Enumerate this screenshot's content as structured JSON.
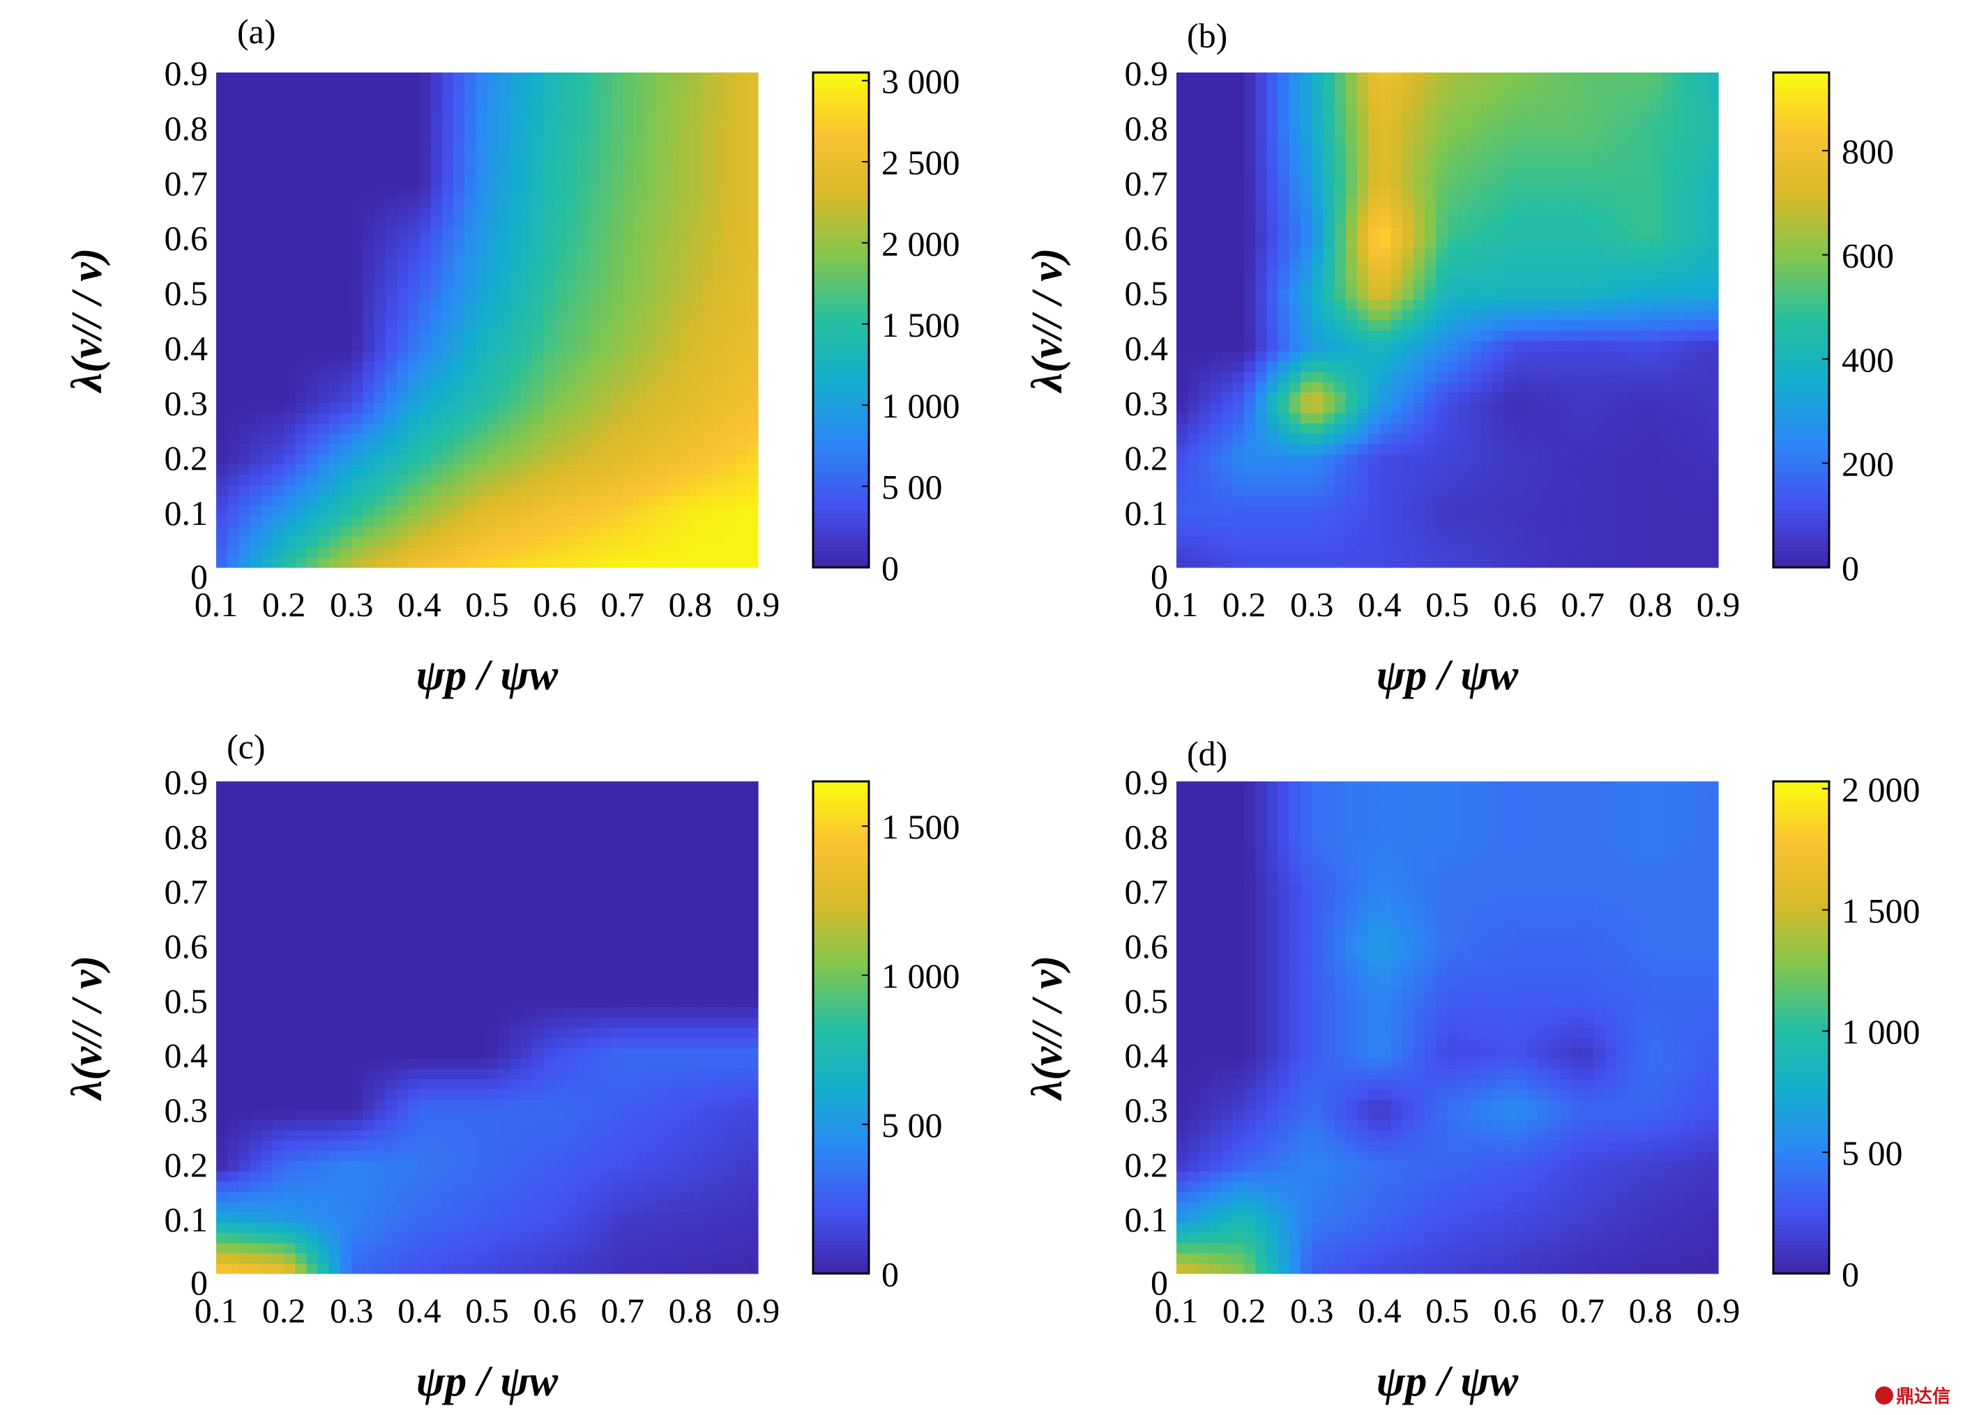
{
  "colors": {
    "colormap": "parula",
    "colormap_stops": [
      "#3e26a8",
      "#4352f0",
      "#2c87f6",
      "#14adcf",
      "#25bfa0",
      "#7fc64f",
      "#d7ba2a",
      "#fbc232",
      "#f9fb0e"
    ]
  },
  "watermark": {
    "text": "鼎达信"
  },
  "chart_data": [
    {
      "type": "heatmap",
      "panel_label": "(a)",
      "xlabel": "ψp / ψw",
      "ylabel": "λ(v// / v)",
      "x": [
        0.1,
        0.2,
        0.3,
        0.4,
        0.5,
        0.6,
        0.7,
        0.8,
        0.9
      ],
      "y": [
        0,
        0.1,
        0.2,
        0.3,
        0.4,
        0.5,
        0.6,
        0.7,
        0.8,
        0.9
      ],
      "x_tick_labels": [
        "0.1",
        "0.2",
        "0.3",
        "0.4",
        "0.5",
        "0.6",
        "0.7",
        "0.8",
        "0.9"
      ],
      "y_tick_labels": [
        "0",
        "0.1",
        "0.2",
        "0.3",
        "0.4",
        "0.5",
        "0.6",
        "0.7",
        "0.8",
        "0.9"
      ],
      "colorbar": {
        "range": [
          0,
          3050
        ],
        "ticks": [
          0,
          500,
          1000,
          1500,
          2000,
          2500,
          3000
        ],
        "tick_labels": [
          "0",
          "5 00",
          "1 000",
          "1 500",
          "2 000",
          "2 500",
          "3 000"
        ]
      },
      "values": [
        [
          500,
          1500,
          2200,
          2600,
          2800,
          2900,
          3000,
          3000,
          3000
        ],
        [
          300,
          900,
          1500,
          2000,
          2400,
          2600,
          2750,
          2950,
          3000
        ],
        [
          0,
          300,
          1000,
          1500,
          1900,
          2200,
          2400,
          2600,
          2800
        ],
        [
          0,
          0,
          300,
          1100,
          1500,
          1900,
          2200,
          2400,
          2600
        ],
        [
          0,
          0,
          0,
          700,
          1300,
          1700,
          2000,
          2300,
          2500
        ],
        [
          0,
          0,
          0,
          500,
          1100,
          1600,
          1900,
          2200,
          2450
        ],
        [
          0,
          0,
          0,
          300,
          1000,
          1500,
          1850,
          2150,
          2400
        ],
        [
          0,
          0,
          0,
          0,
          900,
          1450,
          1800,
          2100,
          2400
        ],
        [
          0,
          0,
          0,
          0,
          850,
          1400,
          1750,
          2100,
          2400
        ],
        [
          0,
          0,
          0,
          0,
          800,
          1350,
          1750,
          2050,
          2400
        ]
      ]
    },
    {
      "type": "heatmap",
      "panel_label": "(b)",
      "xlabel": "ψp / ψw",
      "ylabel": "λ(v// / v)",
      "x": [
        0.1,
        0.2,
        0.3,
        0.4,
        0.5,
        0.6,
        0.7,
        0.8,
        0.9
      ],
      "y": [
        0,
        0.1,
        0.2,
        0.3,
        0.4,
        0.5,
        0.6,
        0.7,
        0.8,
        0.9
      ],
      "x_tick_labels": [
        "0.1",
        "0.2",
        "0.3",
        "0.4",
        "0.5",
        "0.6",
        "0.7",
        "0.8",
        "0.9"
      ],
      "y_tick_labels": [
        "0",
        "0.1",
        "0.2",
        "0.3",
        "0.4",
        "0.5",
        "0.6",
        "0.7",
        "0.8",
        "0.9"
      ],
      "colorbar": {
        "range": [
          0,
          950
        ],
        "ticks": [
          0,
          200,
          400,
          600,
          800
        ],
        "tick_labels": [
          "0",
          "200",
          "400",
          "600",
          "800"
        ]
      },
      "values": [
        [
          50,
          100,
          100,
          100,
          80,
          50,
          30,
          20,
          20
        ],
        [
          150,
          150,
          150,
          100,
          50,
          40,
          30,
          20,
          20
        ],
        [
          100,
          250,
          250,
          100,
          80,
          50,
          30,
          20,
          30
        ],
        [
          0,
          150,
          750,
          300,
          100,
          20,
          50,
          30,
          50
        ],
        [
          0,
          0,
          300,
          400,
          250,
          100,
          80,
          100,
          50
        ],
        [
          0,
          0,
          350,
          750,
          400,
          400,
          400,
          350,
          350
        ],
        [
          0,
          0,
          250,
          900,
          500,
          450,
          450,
          500,
          400
        ],
        [
          0,
          0,
          300,
          750,
          550,
          500,
          500,
          500,
          400
        ],
        [
          0,
          0,
          350,
          750,
          600,
          550,
          550,
          500,
          450
        ],
        [
          0,
          0,
          350,
          800,
          650,
          600,
          550,
          550,
          400
        ]
      ]
    },
    {
      "type": "heatmap",
      "panel_label": "(c)",
      "xlabel": "ψp / ψw",
      "ylabel": "λ(v// / v)",
      "x": [
        0.1,
        0.2,
        0.3,
        0.4,
        0.5,
        0.6,
        0.7,
        0.8,
        0.9
      ],
      "y": [
        0,
        0.1,
        0.2,
        0.3,
        0.4,
        0.5,
        0.6,
        0.7,
        0.8,
        0.9
      ],
      "x_tick_labels": [
        "0.1",
        "0.2",
        "0.3",
        "0.4",
        "0.5",
        "0.6",
        "0.7",
        "0.8",
        "0.9"
      ],
      "y_tick_labels": [
        "0",
        "0.1",
        "0.2",
        "0.3",
        "0.4",
        "0.5",
        "0.6",
        "0.7",
        "0.8",
        "0.9"
      ],
      "colorbar": {
        "range": [
          0,
          1650
        ],
        "ticks": [
          0,
          500,
          1000,
          1500
        ],
        "tick_labels": [
          "0",
          "5 00",
          "1 000",
          "1 500"
        ]
      },
      "values": [
        [
          1500,
          1400,
          300,
          200,
          150,
          100,
          50,
          30,
          20
        ],
        [
          600,
          500,
          400,
          300,
          250,
          200,
          100,
          80,
          50
        ],
        [
          0,
          300,
          400,
          350,
          300,
          250,
          200,
          150,
          100
        ],
        [
          0,
          0,
          0,
          300,
          300,
          300,
          250,
          200,
          150
        ],
        [
          0,
          0,
          0,
          0,
          0,
          200,
          300,
          300,
          300
        ],
        [
          0,
          0,
          0,
          0,
          0,
          0,
          0,
          0,
          0
        ],
        [
          0,
          0,
          0,
          0,
          0,
          0,
          0,
          0,
          0
        ],
        [
          0,
          0,
          0,
          0,
          0,
          0,
          0,
          0,
          0
        ],
        [
          0,
          0,
          0,
          0,
          0,
          0,
          0,
          0,
          0
        ],
        [
          0,
          0,
          0,
          0,
          0,
          0,
          0,
          0,
          0
        ]
      ]
    },
    {
      "type": "heatmap",
      "panel_label": "(d)",
      "xlabel": "ψp / ψw",
      "ylabel": "λ(v// / v)",
      "x": [
        0.1,
        0.2,
        0.3,
        0.4,
        0.5,
        0.6,
        0.7,
        0.8,
        0.9
      ],
      "y": [
        0,
        0.1,
        0.2,
        0.3,
        0.4,
        0.5,
        0.6,
        0.7,
        0.8,
        0.9
      ],
      "x_tick_labels": [
        "0.1",
        "0.2",
        "0.3",
        "0.4",
        "0.5",
        "0.6",
        "0.7",
        "0.8",
        "0.9"
      ],
      "y_tick_labels": [
        "0",
        "0.1",
        "0.2",
        "0.3",
        "0.4",
        "0.5",
        "0.6",
        "0.7",
        "0.8",
        "0.9"
      ],
      "colorbar": {
        "range": [
          0,
          2030
        ],
        "ticks": [
          0,
          500,
          1000,
          1500,
          2000
        ],
        "tick_labels": [
          "0",
          "5 00",
          "1 000",
          "1 500",
          "2 000"
        ]
      },
      "values": [
        [
          1600,
          1300,
          300,
          200,
          150,
          100,
          50,
          30,
          20
        ],
        [
          600,
          900,
          450,
          350,
          250,
          200,
          150,
          80,
          50
        ],
        [
          100,
          350,
          500,
          400,
          350,
          300,
          200,
          150,
          100
        ],
        [
          0,
          150,
          400,
          100,
          400,
          550,
          350,
          350,
          250
        ],
        [
          0,
          0,
          300,
          500,
          200,
          250,
          100,
          400,
          300
        ],
        [
          0,
          0,
          300,
          500,
          300,
          300,
          300,
          350,
          350
        ],
        [
          0,
          0,
          300,
          650,
          400,
          350,
          350,
          400,
          400
        ],
        [
          0,
          0,
          300,
          500,
          400,
          400,
          400,
          400,
          400
        ],
        [
          0,
          0,
          400,
          450,
          450,
          400,
          400,
          450,
          400
        ],
        [
          0,
          0,
          400,
          450,
          450,
          400,
          400,
          450,
          400
        ]
      ]
    }
  ]
}
